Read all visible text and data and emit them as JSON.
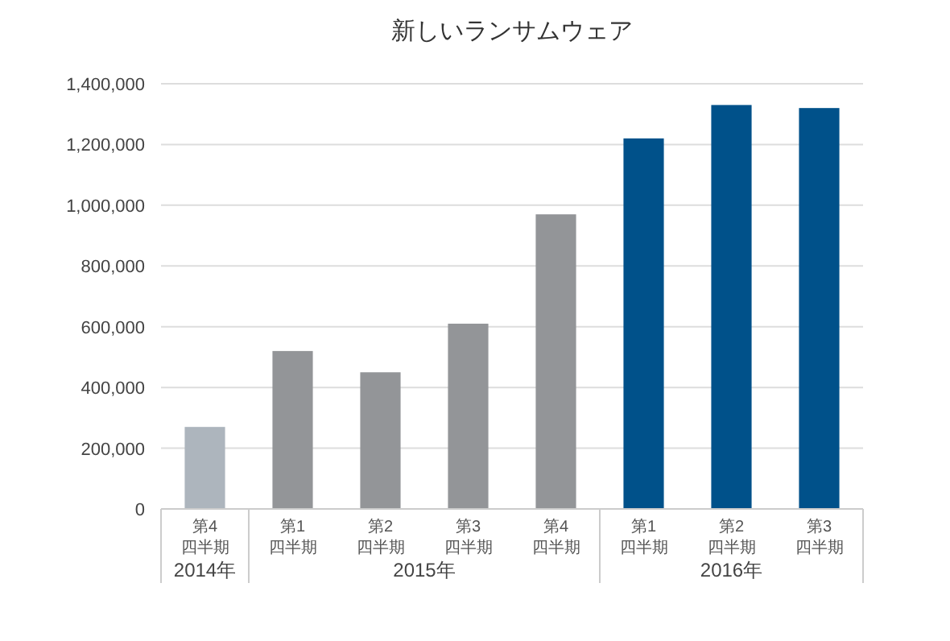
{
  "chart_data": {
    "type": "bar",
    "title": "新しいランサムウェア",
    "categories": [
      "第4\n四半期",
      "第1\n四半期",
      "第2\n四半期",
      "第3\n四半期",
      "第4\n四半期",
      "第1\n四半期",
      "第2\n四半期",
      "第3\n四半期"
    ],
    "values": [
      270000,
      520000,
      450000,
      610000,
      970000,
      1220000,
      1330000,
      1320000
    ],
    "colors": [
      "#adb5bd",
      "#939598",
      "#939598",
      "#939598",
      "#939598",
      "#00518a",
      "#00518a",
      "#00518a"
    ],
    "ylim": [
      0,
      1400000
    ],
    "yticks": [
      {
        "value": 0,
        "label": "0"
      },
      {
        "value": 200000,
        "label": "200,000"
      },
      {
        "value": 400000,
        "label": "400,000"
      },
      {
        "value": 600000,
        "label": "600,000"
      },
      {
        "value": 800000,
        "label": "800,000"
      },
      {
        "value": 1000000,
        "label": "1,000,000"
      },
      {
        "value": 1200000,
        "label": "1,200,000"
      },
      {
        "value": 1400000,
        "label": "1,400,000"
      }
    ],
    "grid": "y",
    "annotations": [
      "2014年",
      "2015年",
      "2016年"
    ]
  }
}
